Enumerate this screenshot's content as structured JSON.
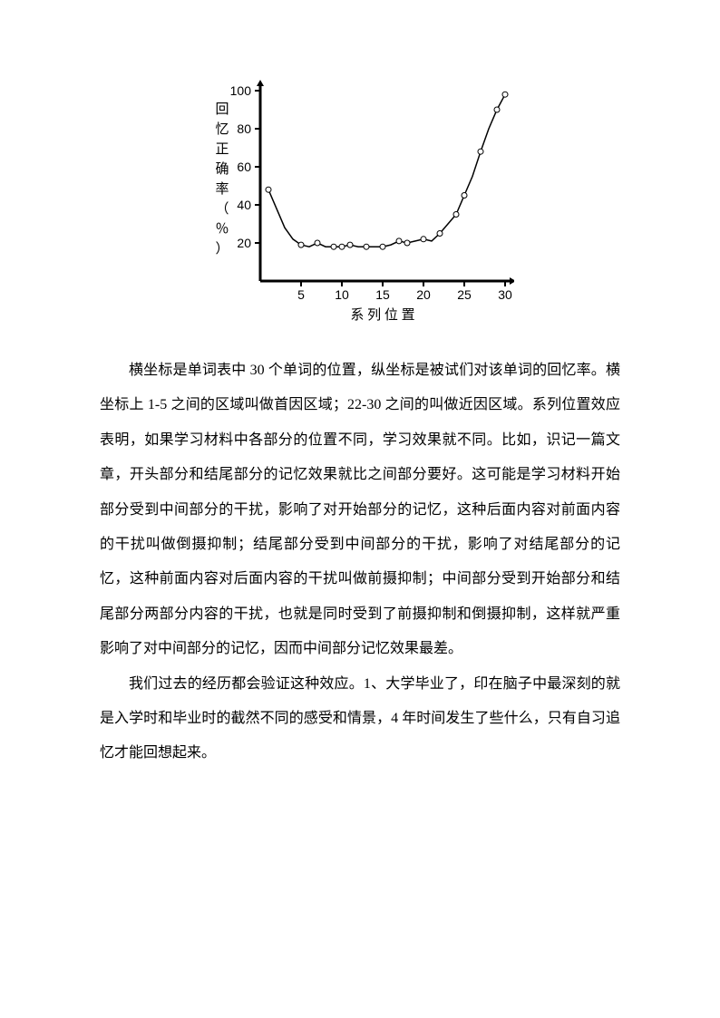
{
  "chart": {
    "type": "line",
    "ylabel": "回忆正确率（％）",
    "xlabel": "系 列 位 置",
    "xlim": [
      0,
      30
    ],
    "ylim": [
      0,
      100
    ],
    "xticks": [
      5,
      10,
      15,
      20,
      25,
      30
    ],
    "yticks": [
      20,
      40,
      60,
      80,
      100
    ],
    "xtick_labels": [
      "5",
      "10",
      "15",
      "20",
      "25",
      "30"
    ],
    "ytick_labels": [
      "20",
      "40",
      "60",
      "80",
      "100"
    ],
    "line_color": "#000000",
    "marker_color": "#ffffff",
    "marker_border": "#000000",
    "background_color": "#ffffff",
    "axis_color": "#000000",
    "axis_width": 3,
    "line_width": 1.5,
    "marker_size": 3,
    "data": [
      {
        "x": 1,
        "y": 48
      },
      {
        "x": 2,
        "y": 38
      },
      {
        "x": 3,
        "y": 28
      },
      {
        "x": 4,
        "y": 22
      },
      {
        "x": 5,
        "y": 19
      },
      {
        "x": 6,
        "y": 18
      },
      {
        "x": 7,
        "y": 20
      },
      {
        "x": 8,
        "y": 18
      },
      {
        "x": 9,
        "y": 18
      },
      {
        "x": 10,
        "y": 18
      },
      {
        "x": 11,
        "y": 19
      },
      {
        "x": 12,
        "y": 18
      },
      {
        "x": 13,
        "y": 18
      },
      {
        "x": 14,
        "y": 18
      },
      {
        "x": 15,
        "y": 18
      },
      {
        "x": 16,
        "y": 19
      },
      {
        "x": 17,
        "y": 21
      },
      {
        "x": 18,
        "y": 20
      },
      {
        "x": 19,
        "y": 21
      },
      {
        "x": 20,
        "y": 22
      },
      {
        "x": 21,
        "y": 21
      },
      {
        "x": 22,
        "y": 25
      },
      {
        "x": 23,
        "y": 30
      },
      {
        "x": 24,
        "y": 35
      },
      {
        "x": 25,
        "y": 45
      },
      {
        "x": 26,
        "y": 55
      },
      {
        "x": 27,
        "y": 68
      },
      {
        "x": 28,
        "y": 80
      },
      {
        "x": 29,
        "y": 90
      },
      {
        "x": 30,
        "y": 98
      }
    ],
    "markers_at": [
      1,
      5,
      7,
      9,
      10,
      11,
      13,
      15,
      17,
      18,
      20,
      22,
      24,
      25,
      27,
      29,
      30
    ]
  },
  "text": {
    "para1": "横坐标是单词表中 30 个单词的位置，纵坐标是被试们对该单词的回忆率。横坐标上 1-5 之间的区域叫做首因区域；22-30 之间的叫做近因区域。系列位置效应表明，如果学习材料中各部分的位置不同，学习效果就不同。比如，识记一篇文章，开头部分和结尾部分的记忆效果就比之间部分要好。这可能是学习材料开始部分受到中间部分的干扰，影响了对开始部分的记忆，这种后面内容对前面内容的干扰叫做倒摄抑制；结尾部分受到中间部分的干扰，影响了对结尾部分的记忆，这种前面内容对后面内容的干扰叫做前摄抑制；中间部分受到开始部分和结尾部分两部分内容的干扰，也就是同时受到了前摄抑制和倒摄抑制，这样就严重影响了对中间部分的记忆，因而中间部分记忆效果最差。",
    "para2": "我们过去的经历都会验证这种效应。1、大学毕业了，印在脑子中最深刻的就是入学时和毕业时的截然不同的感受和情景，4 年时间发生了些什么，只有自习追忆才能回想起来。"
  }
}
